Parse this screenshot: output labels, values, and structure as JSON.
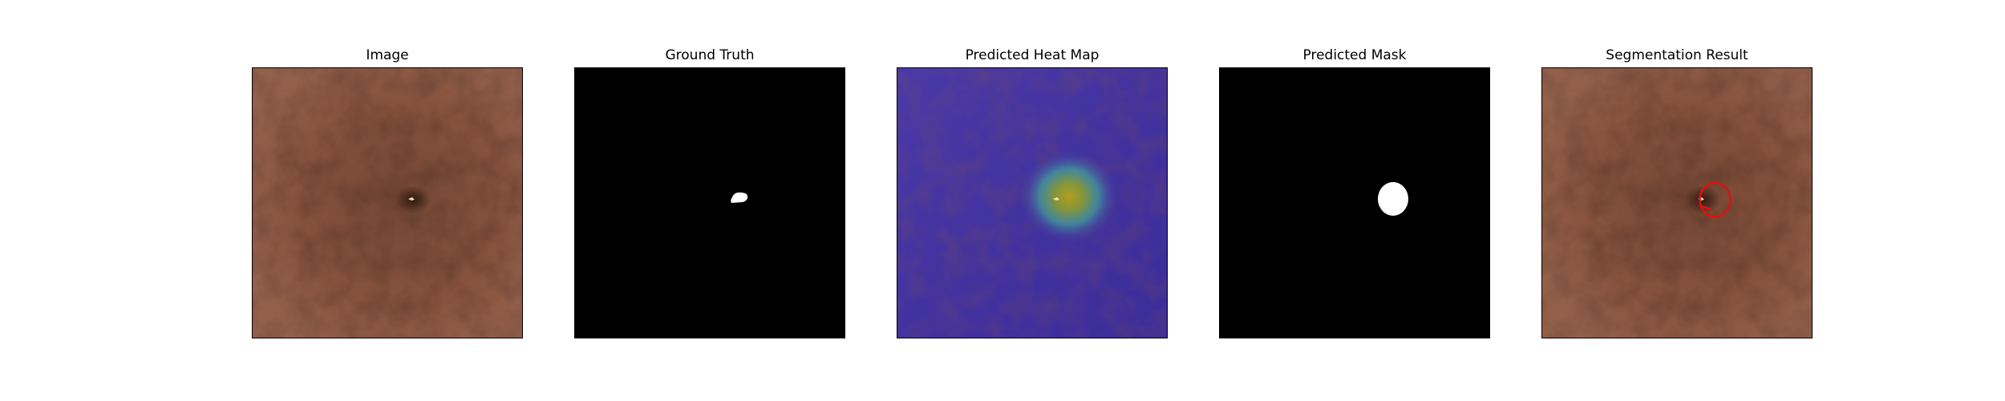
{
  "figure": {
    "panels": [
      {
        "title": "Image"
      },
      {
        "title": "Ground Truth"
      },
      {
        "title": "Predicted Heat Map"
      },
      {
        "title": "Predicted Mask"
      },
      {
        "title": "Segmentation Result"
      }
    ]
  },
  "colors": {
    "leather_base": "#8c5640",
    "leather_light": "#a06650",
    "leather_dark": "#5e382a",
    "mask_background": "#000000",
    "mask_foreground": "#ffffff",
    "heatmap_cold": "#4a36a0",
    "heatmap_hot": "#b0a020",
    "heatmap_mid": "#3fae9e",
    "segmentation_outline": "#e01010"
  }
}
